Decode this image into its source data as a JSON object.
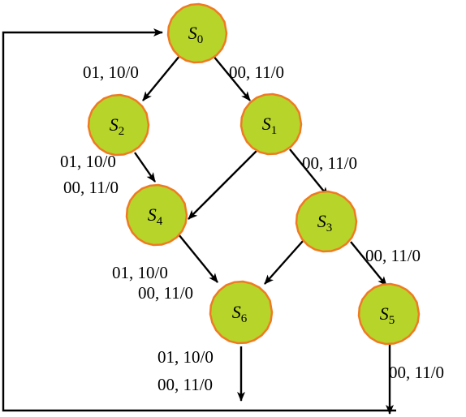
{
  "states": [
    {
      "id": "s0",
      "letter": "S",
      "sub": "0"
    },
    {
      "id": "s1",
      "letter": "S",
      "sub": "1"
    },
    {
      "id": "s2",
      "letter": "S",
      "sub": "2"
    },
    {
      "id": "s3",
      "letter": "S",
      "sub": "3"
    },
    {
      "id": "s4",
      "letter": "S",
      "sub": "4"
    },
    {
      "id": "s5",
      "letter": "S",
      "sub": "5"
    },
    {
      "id": "s6",
      "letter": "S",
      "sub": "6"
    }
  ],
  "labels": {
    "s0_s2": "01, 10/0",
    "s0_s1": "00, 11/0",
    "s2_s4_a": "01, 10/0",
    "s2_s4_b": "00, 11/0",
    "s1_s3": "00, 11/0",
    "s4_s6_a": "01, 10/0",
    "s4_s6_b": "00, 11/0",
    "s3_s5": "00, 11/0",
    "s6_out_a": "01, 10/0",
    "s6_out_b": "00, 11/0",
    "s5_out": "00, 11/0"
  },
  "colors": {
    "state_fill": "#b6d42a",
    "state_border": "#f07a22",
    "edge": "#000000"
  }
}
